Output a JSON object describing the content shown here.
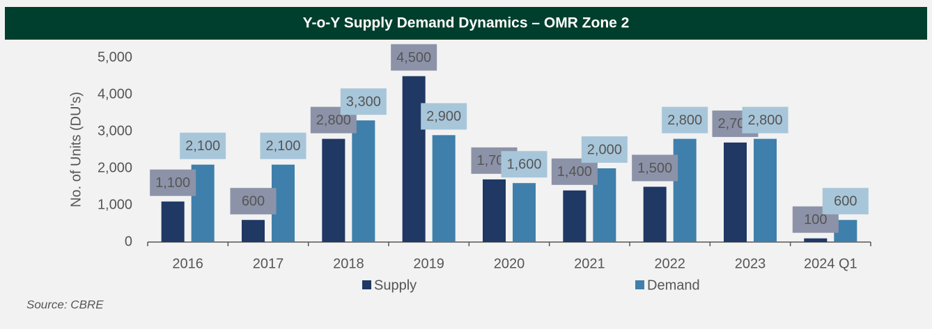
{
  "chart_data": {
    "type": "bar",
    "title": "Y-o-Y Supply Demand Dynamics – OMR Zone 2",
    "y_label": "No. of Units (DU's)",
    "source": "Source: CBRE",
    "categories": [
      "2016",
      "2017",
      "2018",
      "2019",
      "2020",
      "2021",
      "2022",
      "2023",
      "2024 Q1"
    ],
    "series": [
      {
        "name": "Supply",
        "color": "#1f3864",
        "label_color": "#8c93a8",
        "values": [
          1100,
          600,
          2800,
          4500,
          1700,
          1400,
          1500,
          2700,
          100
        ],
        "value_labels": [
          "1,100",
          "600",
          "2,800",
          "4,500",
          "1,700",
          "1,400",
          "1,500",
          "2,700",
          "100"
        ]
      },
      {
        "name": "Demand",
        "color": "#3f7fab",
        "label_color": "#a8c6da",
        "values": [
          2100,
          2100,
          3300,
          2900,
          1600,
          2000,
          2800,
          2800,
          600
        ],
        "value_labels": [
          "2,100",
          "2,100",
          "3,300",
          "2,900",
          "1,600",
          "2,000",
          "2,800",
          "2,800",
          "600"
        ]
      }
    ],
    "ylim": [
      0,
      5000
    ],
    "yticks": [
      0,
      {
        "value": 1000,
        "label": "1,000"
      },
      {
        "value": 2000,
        "label": "2,000"
      },
      {
        "value": 3000,
        "label": "3,000"
      },
      {
        "value": 4000,
        "label": "4,000"
      },
      {
        "value": 5000,
        "label": "5,000"
      }
    ],
    "grid": false,
    "legend": "bottom"
  }
}
